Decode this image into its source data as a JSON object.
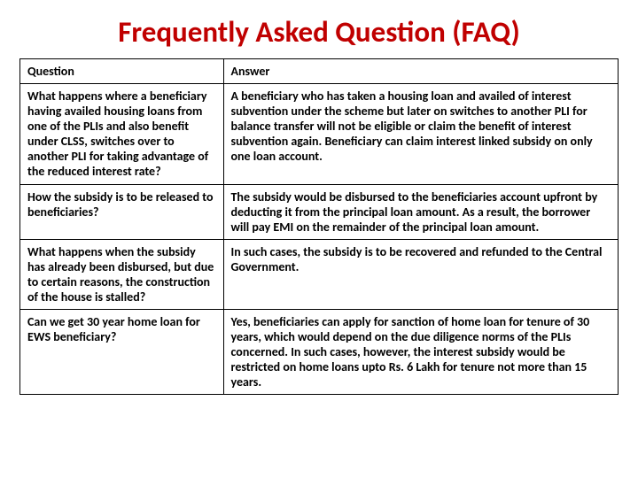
{
  "title": "Frequently Asked Question (FAQ)",
  "headers": {
    "q": "Question",
    "a": "Answer"
  },
  "rows": [
    {
      "q": "What happens where a beneficiary having availed housing loans from one of the PLIs and also benefit under CLSS, switches over to another PLI for taking advantage of the reduced interest rate?",
      "a": "A beneficiary who has taken a housing loan and availed of interest subvention under the scheme but later on switches to another PLI for balance transfer will not be eligible or claim the benefit of interest subvention again. Beneficiary can claim interest linked subsidy on only one loan account."
    },
    {
      "q": "How the subsidy is to be released to beneficiaries?",
      "a": "The subsidy would be disbursed to the beneficiaries account upfront by deducting it from the principal loan amount. As a result, the borrower will pay EMI on the remainder of the principal loan amount."
    },
    {
      "q": "What happens when the subsidy has already been disbursed, but due to certain reasons, the construction of the house is stalled?",
      "a": "In such cases, the subsidy is to be recovered and refunded to the Central Government."
    },
    {
      "q": "Can we get 30 year home loan for EWS beneficiary?",
      "a": "Yes, beneficiaries can apply for sanction of home loan for tenure of 30 years, which would depend on the due diligence norms of the PLIs concerned. In such cases, however, the interest subsidy would be restricted on home loans upto Rs. 6 Lakh for tenure not more than 15 years."
    }
  ],
  "colors": {
    "title": "#c00000",
    "border": "#000000",
    "text": "#000000",
    "background": "#ffffff"
  },
  "layout": {
    "q_col_width_pct": 34,
    "a_col_width_pct": 66,
    "title_fontsize": 33,
    "cell_fontsize": 14
  }
}
